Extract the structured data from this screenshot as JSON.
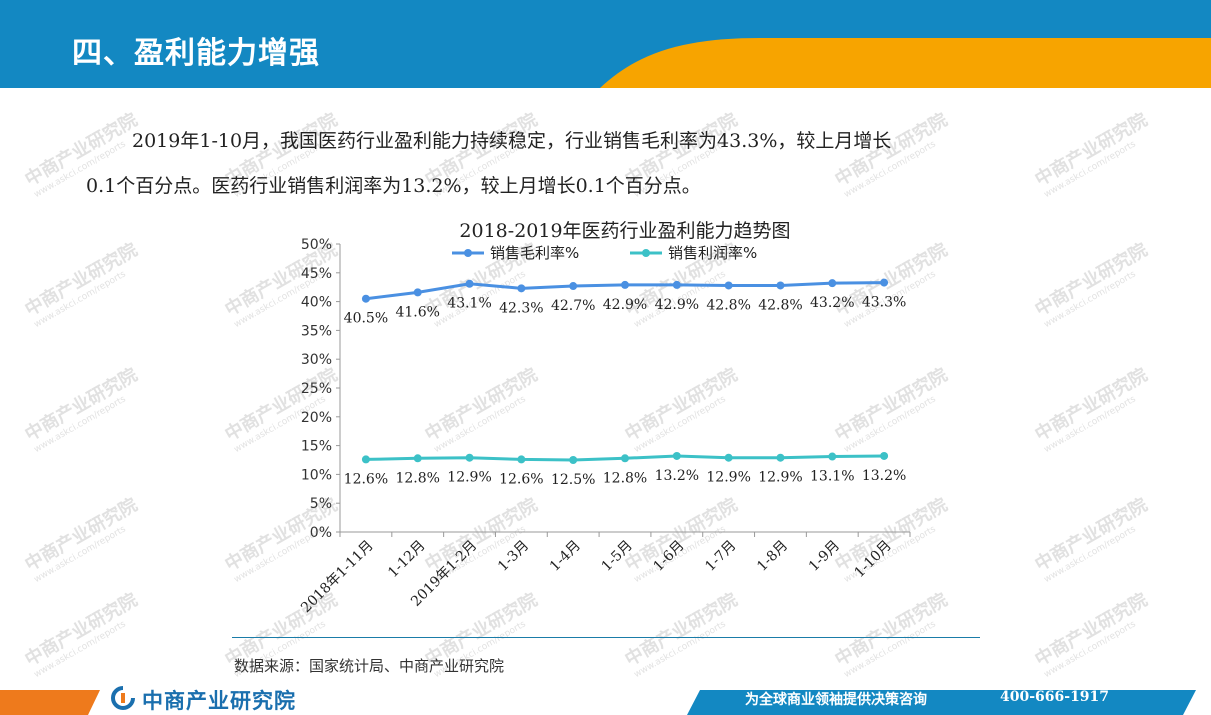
{
  "header": {
    "title": "四、盈利能力增强",
    "colors": {
      "blue": "#1388c2",
      "orange": "#f7a400"
    }
  },
  "paragraph": {
    "line1": "2019年1-10月，我国医药行业盈利能力持续稳定，行业销售毛利率为43.3%，较上月增长",
    "line2": "0.1个百分点。医药行业销售利润率为13.2%，较上月增长0.1个百分点。"
  },
  "chart_data": {
    "type": "line",
    "title": "2018-2019年医药行业盈利能力趋势图",
    "categories": [
      "2018年1-11月",
      "1-12月",
      "2019年1-2月",
      "1-3月",
      "1-4月",
      "1-5月",
      "1-6月",
      "1-7月",
      "1-8月",
      "1-9月",
      "1-10月"
    ],
    "series": [
      {
        "name": "销售毛利率%",
        "color": "#4a90e2",
        "values": [
          40.5,
          41.6,
          43.1,
          42.3,
          42.7,
          42.9,
          42.9,
          42.8,
          42.8,
          43.2,
          43.3
        ],
        "labels": [
          "40.5%",
          "41.6%",
          "43.1%",
          "42.3%",
          "42.7%",
          "42.9%",
          "42.9%",
          "42.8%",
          "42.8%",
          "43.2%",
          "43.3%"
        ]
      },
      {
        "name": "销售利润率%",
        "color": "#3cc1c7",
        "values": [
          12.6,
          12.8,
          12.9,
          12.6,
          12.5,
          12.8,
          13.2,
          12.9,
          12.9,
          13.1,
          13.2
        ],
        "labels": [
          "12.6%",
          "12.8%",
          "12.9%",
          "12.6%",
          "12.5%",
          "12.8%",
          "13.2%",
          "12.9%",
          "12.9%",
          "13.1%",
          "13.2%"
        ]
      }
    ],
    "ylim": [
      0,
      50
    ],
    "yticks": [
      0,
      5,
      10,
      15,
      20,
      25,
      30,
      35,
      40,
      45,
      50
    ],
    "ytick_labels": [
      "0%",
      "5%",
      "10%",
      "15%",
      "20%",
      "25%",
      "30%",
      "35%",
      "40%",
      "45%",
      "50%"
    ],
    "legend_position": "top",
    "grid": false
  },
  "source": "数据来源：国家统计局、中商产业研究院",
  "footer": {
    "logo_text": "中商产业研究院",
    "slogan": "为全球商业领袖提供决策咨询",
    "phone": "400-666-1917"
  },
  "watermark": {
    "text": "中商产业研究院",
    "sub": "www.askci.com/reports"
  }
}
